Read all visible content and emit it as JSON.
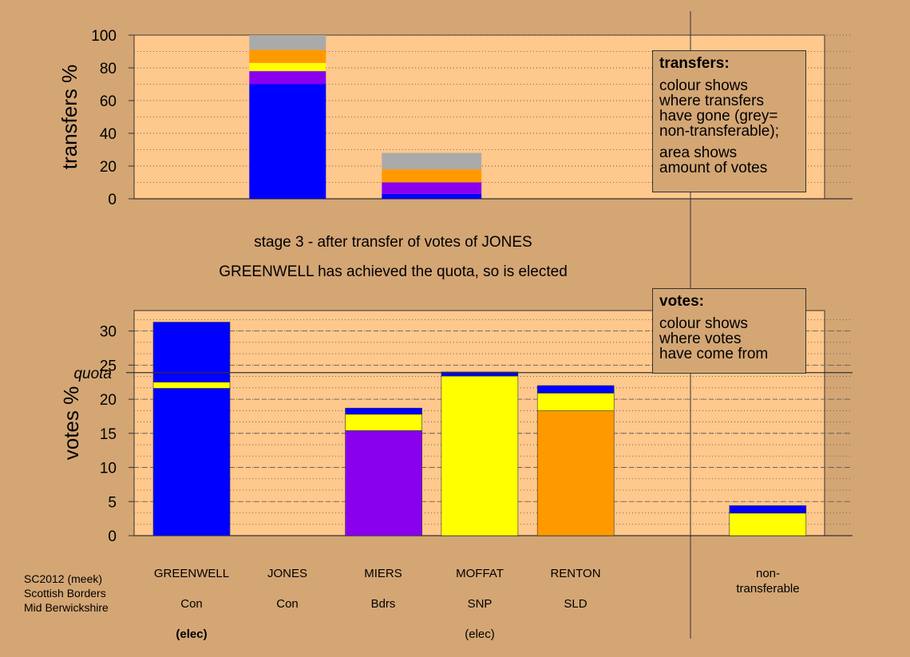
{
  "captions": {
    "stage": "stage 3 - after transfer of votes of JONES",
    "result": "GREENWELL has achieved the quota, so is elected"
  },
  "legend_transfers": {
    "title": "transfers:",
    "para1": "colour shows\nwhere transfers\nhave gone (grey=\nnon-transferable);",
    "para2": "area shows\namount of votes"
  },
  "legend_votes": {
    "title": "votes:",
    "para1": "colour shows\nwhere votes\nhave come from"
  },
  "candidates": [
    {
      "name": "GREENWELL",
      "party": "Con",
      "status": "(elec)",
      "status_bold": true
    },
    {
      "name": "JONES",
      "party": "Con",
      "status": "",
      "status_bold": false
    },
    {
      "name": "MIERS",
      "party": "Bdrs",
      "status": "",
      "status_bold": false
    },
    {
      "name": "MOFFAT",
      "party": "SNP",
      "status": "(elec)",
      "status_bold": false
    },
    {
      "name": "RENTON",
      "party": "SLD",
      "status": "",
      "status_bold": false
    },
    {
      "name": "non-\ntransferable",
      "party": "",
      "status": "",
      "status_bold": false
    }
  ],
  "footer": {
    "line1": "SC2012 (meek)",
    "line2": "Scottish Borders",
    "line3": "Mid Berwickshire"
  },
  "colors": {
    "background": "#d4a674",
    "plot_bg": "#ffc88c",
    "blue": "#0000ff",
    "purple": "#8800ee",
    "yellow": "#ffff00",
    "orange": "#ff9900",
    "grey": "#aaaaaa"
  },
  "chart_data": [
    {
      "type": "bar",
      "stacked": true,
      "ylabel": "transfers %",
      "ylim": [
        0,
        100
      ],
      "yticks": [
        0,
        20,
        40,
        60,
        80,
        100
      ],
      "grid": true,
      "bars": [
        {
          "slot": 1,
          "width_fraction": 1.0,
          "segments": [
            {
              "color": "blue",
              "value": 70
            },
            {
              "color": "purple",
              "value": 8
            },
            {
              "color": "yellow",
              "value": 5
            },
            {
              "color": "orange",
              "value": 8
            },
            {
              "color": "grey",
              "value": 9
            }
          ]
        },
        {
          "slot": 2.5,
          "width_fraction": 1.3,
          "segments": [
            {
              "color": "blue",
              "value": 3
            },
            {
              "color": "purple",
              "value": 7
            },
            {
              "color": "orange",
              "value": 8
            },
            {
              "color": "grey",
              "value": 10
            }
          ]
        }
      ]
    },
    {
      "type": "bar",
      "stacked": true,
      "ylabel": "votes %",
      "ylim": [
        0,
        33
      ],
      "yticks": [
        0,
        5,
        10,
        15,
        20,
        25,
        30
      ],
      "quota": 23.9,
      "quota_label": "quota",
      "grid": true,
      "bars": [
        {
          "slot": 0,
          "segments": [
            {
              "color": "blue",
              "value": 21.6
            },
            {
              "color": "yellow",
              "value": 0.9
            },
            {
              "color": "blue",
              "value": 8.8
            }
          ]
        },
        {
          "slot": 1,
          "segments": []
        },
        {
          "slot": 2,
          "segments": [
            {
              "color": "purple",
              "value": 15.4
            },
            {
              "color": "yellow",
              "value": 2.4
            },
            {
              "color": "blue",
              "value": 0.9
            }
          ]
        },
        {
          "slot": 3,
          "segments": [
            {
              "color": "yellow",
              "value": 23.4
            },
            {
              "color": "blue",
              "value": 0.6
            }
          ]
        },
        {
          "slot": 4,
          "segments": [
            {
              "color": "orange",
              "value": 18.3
            },
            {
              "color": "yellow",
              "value": 2.6
            },
            {
              "color": "blue",
              "value": 1.1
            }
          ]
        },
        {
          "slot": 6,
          "segments": [
            {
              "color": "yellow",
              "value": 3.3
            },
            {
              "color": "blue",
              "value": 1.1
            }
          ]
        }
      ]
    }
  ]
}
